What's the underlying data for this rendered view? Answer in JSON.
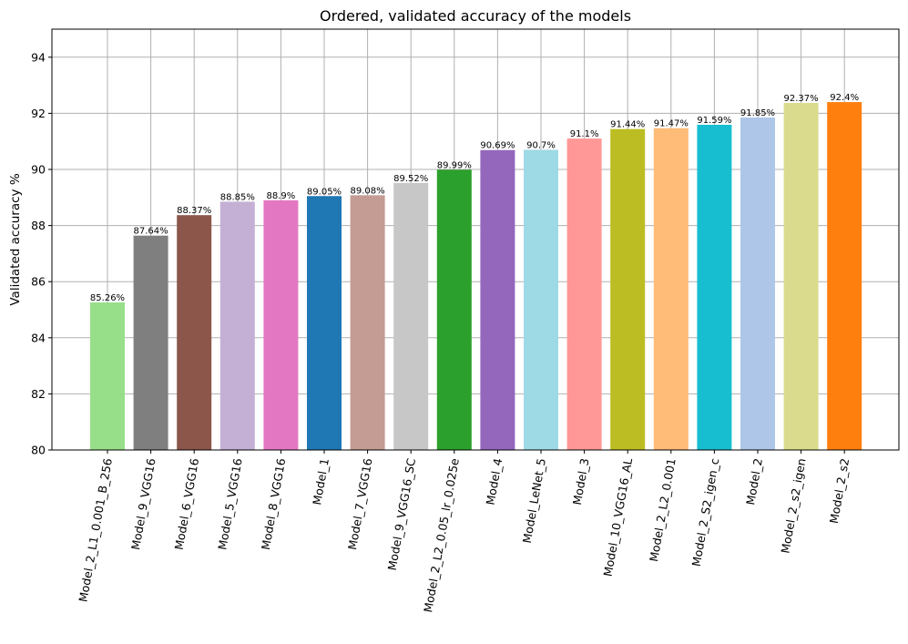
{
  "chart_data": {
    "type": "bar",
    "title": "Ordered, validated accuracy of the models",
    "xlabel": "",
    "ylabel": "Validated accuracy %",
    "ylim": [
      80,
      95
    ],
    "yticks": [
      80,
      82,
      84,
      86,
      88,
      90,
      92,
      94
    ],
    "grid": true,
    "categories": [
      "Model_2_L1_0.001_B_256",
      "Model_9_VGG16",
      "Model_6_VGG16",
      "Model_5_VGG16",
      "Model_8_VGG16",
      "Model_1",
      "Model_7_VGG16",
      "Model_9_VGG16_SC",
      "Model_2_L2_0.05_lr_0.025e",
      "Model_4",
      "Model_LeNet_5",
      "Model_3",
      "Model_10_VGG16_AL",
      "Model_2_L2_0.001",
      "Model_2_S2_igen_c",
      "Model_2",
      "Model_2_s2_igen",
      "Model_2_s2"
    ],
    "values": [
      85.26,
      87.64,
      88.37,
      88.85,
      88.9,
      89.05,
      89.08,
      89.52,
      89.99,
      90.69,
      90.7,
      91.1,
      91.44,
      91.47,
      91.59,
      91.85,
      92.37,
      92.4
    ],
    "value_labels": [
      "85.26%",
      "87.64%",
      "88.37%",
      "88.85%",
      "88.9%",
      "89.05%",
      "89.08%",
      "89.52%",
      "89.99%",
      "90.69%",
      "90.7%",
      "91.1%",
      "91.44%",
      "91.47%",
      "91.59%",
      "91.85%",
      "92.37%",
      "92.4%"
    ],
    "colors": [
      "#98df8a",
      "#7f7f7f",
      "#8c564b",
      "#c5b0d5",
      "#e377c2",
      "#1f77b4",
      "#c49c94",
      "#c7c7c7",
      "#2ca02c",
      "#9467bd",
      "#9edae5",
      "#ff9896",
      "#bcbd22",
      "#ffbb78",
      "#17becf",
      "#aec7e8",
      "#dbdb8d",
      "#ff7f0e"
    ]
  }
}
